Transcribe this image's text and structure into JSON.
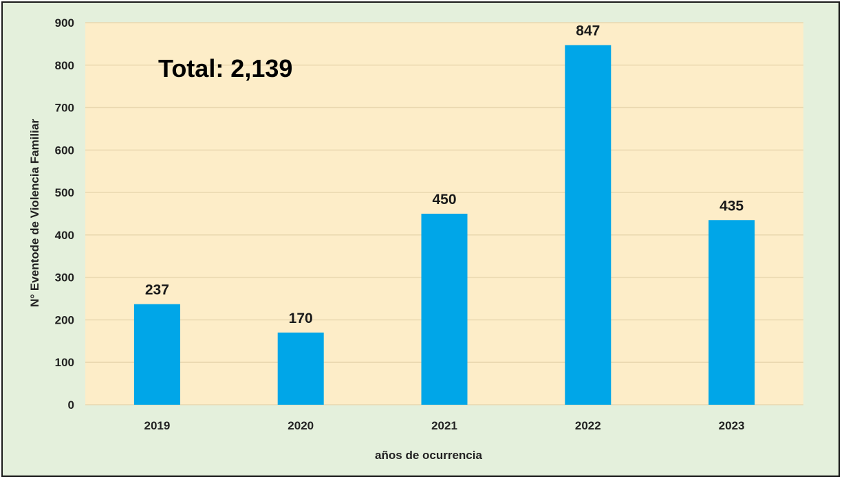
{
  "chart_data": {
    "type": "bar",
    "categories": [
      "2019",
      "2020",
      "2021",
      "2022",
      "2023"
    ],
    "values": [
      237,
      170,
      450,
      847,
      435
    ],
    "data_labels": [
      "237",
      "170",
      "450",
      "847",
      "435"
    ],
    "title": "",
    "xlabel": "años de ocurrencia",
    "ylabel": "N° Eventode de Violencia  Familiar",
    "ylim": [
      0,
      900
    ],
    "yticks": [
      0,
      100,
      200,
      300,
      400,
      500,
      600,
      700,
      800,
      900
    ],
    "grid": true,
    "annotation": "Total: 2,139",
    "colors": {
      "bar": "#00a6e8",
      "plot_background": "#fdedc8",
      "figure_background": "#e4f0dc",
      "grid": "#ead8b0"
    }
  }
}
